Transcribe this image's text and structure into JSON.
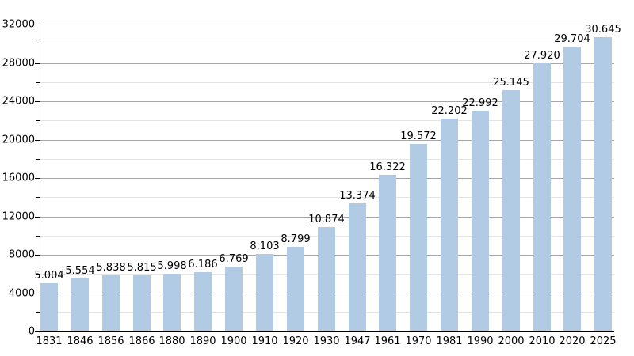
{
  "chart_data": {
    "type": "bar",
    "title": "",
    "xlabel": "",
    "ylabel": "",
    "categories": [
      "1831",
      "1846",
      "1856",
      "1866",
      "1880",
      "1890",
      "1900",
      "1910",
      "1920",
      "1930",
      "1947",
      "1961",
      "1970",
      "1981",
      "1990",
      "2000",
      "2010",
      "2020",
      "2025"
    ],
    "values": [
      5004,
      5554,
      5838,
      5815,
      5998,
      6186,
      6769,
      8103,
      8799,
      10874,
      13374,
      16322,
      19572,
      22202,
      22992,
      25145,
      27920,
      29704,
      30645
    ],
    "value_labels": [
      "5.004",
      "5.554",
      "5.838",
      "5.815",
      "5.998",
      "6.186",
      "6.769",
      "8.103",
      "8.799",
      "10.874",
      "13.374",
      "16.322",
      "19.572",
      "22.202",
      "22.992",
      "25.145",
      "27.920",
      "29.704",
      "30.645"
    ],
    "ylim": [
      0,
      32000
    ],
    "y_major_step": 4000,
    "y_minor_step": 2000,
    "y_tick_labels": [
      "0",
      "4000",
      "8000",
      "12000",
      "16000",
      "20000",
      "24000",
      "28000",
      "32000"
    ],
    "grid": "on",
    "legend": "none",
    "bar_color": "#b2cbe5",
    "grid_major_color": "#a6a6a6",
    "grid_minor_color": "#e4e4e4",
    "axis_color": "#000000"
  }
}
